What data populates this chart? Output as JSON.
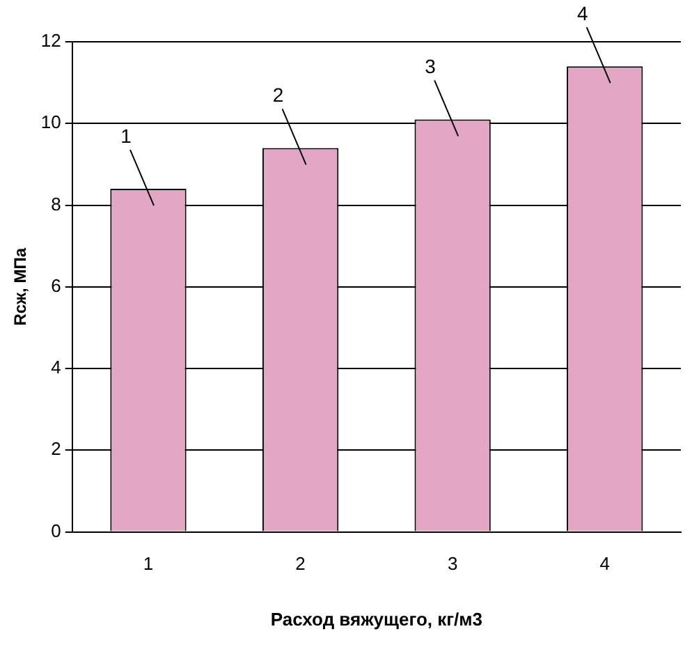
{
  "chart_data": {
    "type": "bar",
    "xlabel": "Расход вяжущего, кг/м3",
    "ylabel": "Rсж, МПа",
    "categories": [
      "1",
      "2",
      "3",
      "4"
    ],
    "values": [
      8.4,
      9.4,
      10.1,
      11.4
    ],
    "color": "#e3a6c4",
    "ylim": [
      0,
      12
    ],
    "yticks": [
      0,
      2,
      4,
      6,
      8,
      10,
      12
    ],
    "grid": "y",
    "legend": false,
    "annotations": [
      {
        "text": "1",
        "x": "1",
        "y": 8.4
      },
      {
        "text": "2",
        "x": "2",
        "y": 9.4
      },
      {
        "text": "3",
        "x": "3",
        "y": 10.1
      },
      {
        "text": "4",
        "x": "4",
        "y": 11.4
      }
    ]
  }
}
